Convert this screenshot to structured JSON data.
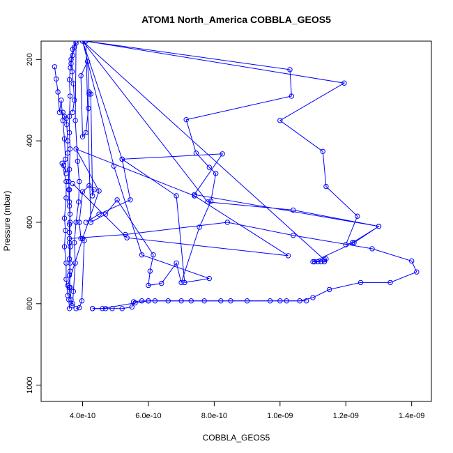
{
  "chart_data": {
    "type": "scatter",
    "title": "ATOM1 North_America COBBLA_GEOS5",
    "xlabel": "COBBLA_GEOS5",
    "ylabel": "Pressure (mbar)",
    "xlim": [
      2.74e-10,
      1.46e-09
    ],
    "ylim": [
      1040,
      155
    ],
    "y_reversed": true,
    "x_ticks": [
      {
        "value": 4e-10,
        "label": "4.0e-10"
      },
      {
        "value": 6e-10,
        "label": "6.0e-10"
      },
      {
        "value": 8e-10,
        "label": "8.0e-10"
      },
      {
        "value": 1e-09,
        "label": "1.0e-09"
      },
      {
        "value": 1.2e-09,
        "label": "1.2e-09"
      },
      {
        "value": 1.4e-09,
        "label": "1.4e-09"
      }
    ],
    "y_ticks": [
      {
        "value": 200,
        "label": "200"
      },
      {
        "value": 400,
        "label": "400"
      },
      {
        "value": 600,
        "label": "600"
      },
      {
        "value": 800,
        "label": "800"
      },
      {
        "value": 1000,
        "label": "1000"
      }
    ],
    "grid": false,
    "legend": "none",
    "series": [
      {
        "color": "#0000ff",
        "marker": "open-circle",
        "style": "line+points",
        "points": [
          [
            3.6e-10,
            812
          ],
          [
            3.58e-10,
            790
          ],
          [
            3.6e-10,
            760
          ],
          [
            3.62e-10,
            720
          ],
          [
            3.6e-10,
            690
          ],
          [
            3.6e-10,
            650
          ],
          [
            3.62e-10,
            600
          ],
          [
            3.6e-10,
            560
          ],
          [
            3.58e-10,
            520
          ],
          [
            3.6e-10,
            470
          ],
          [
            3.62e-10,
            420
          ],
          [
            3.6e-10,
            380
          ],
          [
            3.6e-10,
            340
          ],
          [
            3.62e-10,
            290
          ],
          [
            3.6e-10,
            250
          ],
          [
            3.63e-10,
            220
          ],
          [
            3.65e-10,
            200
          ],
          [
            3.7e-10,
            175
          ],
          [
            3.8e-10,
            155
          ],
          [
            4.1e-10,
            155
          ],
          [
            1.03e-09,
            225
          ],
          [
            1.035e-09,
            290
          ],
          [
            7.15e-10,
            348
          ],
          [
            7.45e-10,
            430
          ],
          [
            7.85e-10,
            465
          ],
          [
            8.05e-10,
            480
          ],
          [
            7.9e-10,
            548
          ],
          [
            7.55e-10,
            612
          ],
          [
            7e-10,
            748
          ],
          [
            6.85e-10,
            700
          ],
          [
            6.4e-10,
            750
          ],
          [
            6e-10,
            755
          ],
          [
            6.05e-10,
            720
          ],
          [
            6.15e-10,
            680
          ],
          [
            5.05e-10,
            545
          ],
          [
            4.7e-10,
            580
          ],
          [
            4.25e-10,
            600
          ],
          [
            4.1e-10,
            155
          ],
          [
            1.195e-09,
            258
          ],
          [
            1e-09,
            350
          ],
          [
            1.13e-09,
            426
          ],
          [
            1.14e-09,
            512
          ],
          [
            1.235e-09,
            585
          ],
          [
            1.2e-09,
            655
          ],
          [
            1.22e-09,
            650
          ],
          [
            1.3e-09,
            610
          ],
          [
            1.04e-09,
            570
          ],
          [
            7.8e-10,
            550
          ],
          [
            4e-10,
            155
          ],
          [
            5.2e-10,
            445
          ],
          [
            8.25e-10,
            432
          ],
          [
            7.4e-10,
            532
          ],
          [
            1.3e-09,
            610
          ],
          [
            1.225e-09,
            650
          ],
          [
            1.1e-09,
            697
          ],
          [
            1.135e-09,
            692
          ],
          [
            4e-10,
            155
          ],
          [
            4.95e-10,
            462
          ],
          [
            5.8e-10,
            680
          ],
          [
            7.85e-10,
            738
          ],
          [
            7.1e-10,
            748
          ],
          [
            6.85e-10,
            535
          ],
          [
            5.2e-10,
            445
          ],
          [
            5.45e-10,
            545
          ],
          [
            4.5e-10,
            580
          ],
          [
            4.1e-10,
            600
          ]
        ]
      },
      {
        "color": "#0000ff",
        "marker": "open-circle",
        "style": "line+points",
        "points": [
          [
            3.6e-10,
            640
          ],
          [
            5.3e-10,
            630
          ],
          [
            8.4e-10,
            600
          ],
          [
            1.04e-09,
            632
          ],
          [
            1.28e-09,
            665
          ],
          [
            1.4e-09,
            695
          ],
          [
            1.415e-09,
            722
          ],
          [
            1.335e-09,
            748
          ],
          [
            1.245e-09,
            748
          ],
          [
            1.15e-09,
            765
          ],
          [
            1.1e-09,
            785
          ],
          [
            1.06e-09,
            793
          ],
          [
            9.7e-10,
            793
          ],
          [
            8.5e-10,
            793
          ],
          [
            7.3e-10,
            793
          ],
          [
            6e-10,
            793
          ],
          [
            5.6e-10,
            798
          ],
          [
            4.6e-10,
            812
          ],
          [
            4.3e-10,
            812
          ]
        ]
      },
      {
        "color": "#0000ff",
        "marker": "open-circle",
        "style": "line+points",
        "points": [
          [
            3.7e-10,
            505
          ],
          [
            5.35e-10,
            638
          ],
          [
            1.025e-09,
            682
          ],
          [
            7.4e-10,
            535
          ],
          [
            3.8e-10,
            420
          ],
          [
            4.5e-10,
            523
          ],
          [
            4e-10,
            640
          ],
          [
            3.55e-10,
            755
          ]
        ]
      },
      {
        "color": "#0000ff",
        "marker": "open-circle",
        "style": "line+points",
        "points": [
          [
            3.15e-10,
            218
          ],
          [
            3.2e-10,
            248
          ],
          [
            3.25e-10,
            280
          ],
          [
            3.3e-10,
            330
          ],
          [
            3.35e-10,
            300
          ],
          [
            3.4e-10,
            350
          ],
          [
            3.45e-10,
            395
          ],
          [
            3.48e-10,
            445
          ],
          [
            3.5e-10,
            480
          ],
          [
            3.42e-10,
            460
          ],
          [
            3.38e-10,
            455
          ],
          [
            3.5e-10,
            500
          ],
          [
            3.5e-10,
            540
          ],
          [
            3.45e-10,
            590
          ],
          [
            3.48e-10,
            620
          ],
          [
            3.45e-10,
            660
          ],
          [
            3.5e-10,
            700
          ],
          [
            3.5e-10,
            740
          ],
          [
            3.55e-10,
            780
          ]
        ]
      },
      {
        "color": "#0000ff",
        "marker": "open-circle",
        "style": "line+points",
        "points": [
          [
            4.2e-10,
            285
          ],
          [
            4.18e-10,
            320
          ],
          [
            4.1e-10,
            380
          ],
          [
            4e-10,
            390
          ],
          [
            3.95e-10,
            240
          ],
          [
            4.15e-10,
            205
          ],
          [
            4.2e-10,
            280
          ],
          [
            4.25e-10,
            285
          ],
          [
            4.3e-10,
            535
          ],
          [
            4.35e-10,
            520
          ],
          [
            4.2e-10,
            510
          ],
          [
            4e-10,
            525
          ],
          [
            3.9e-10,
            600
          ],
          [
            3.95e-10,
            640
          ],
          [
            4.05e-10,
            645
          ],
          [
            3.98e-10,
            793
          ],
          [
            3.9e-10,
            810
          ],
          [
            3.8e-10,
            812
          ]
        ]
      },
      {
        "color": "#0000ff",
        "marker": "open-circle",
        "style": "line+points",
        "points": [
          [
            3.7e-10,
            330
          ],
          [
            3.75e-10,
            300
          ],
          [
            3.72e-10,
            260
          ],
          [
            3.68e-10,
            230
          ],
          [
            3.65e-10,
            210
          ],
          [
            3.7e-10,
            190
          ],
          [
            3.75e-10,
            170
          ],
          [
            3.8e-10,
            160
          ],
          [
            3.78e-10,
            350
          ],
          [
            3.85e-10,
            450
          ],
          [
            3.9e-10,
            500
          ],
          [
            3.88e-10,
            550
          ],
          [
            3.8e-10,
            600
          ],
          [
            3.75e-10,
            650
          ],
          [
            3.78e-10,
            700
          ],
          [
            3.72e-10,
            770
          ],
          [
            3.7e-10,
            800
          ]
        ]
      },
      {
        "color": "#0000ff",
        "marker": "open-circle",
        "style": "line+points",
        "points": [
          [
            3.4e-10,
            330
          ],
          [
            3.45e-10,
            340
          ],
          [
            3.5e-10,
            345
          ],
          [
            3.52e-10,
            360
          ],
          [
            3.55e-10,
            400
          ],
          [
            3.55e-10,
            430
          ],
          [
            3.58e-10,
            500
          ],
          [
            3.6e-10,
            520
          ],
          [
            3.6e-10,
            550
          ],
          [
            3.62e-10,
            580
          ],
          [
            3.6e-10,
            605
          ],
          [
            3.6e-10,
            625
          ],
          [
            3.63e-10,
            660
          ],
          [
            3.62e-10,
            700
          ],
          [
            3.6e-10,
            730
          ],
          [
            3.62e-10,
            760
          ],
          [
            3.65e-10,
            790
          ],
          [
            3.68e-10,
            805
          ]
        ]
      },
      {
        "color": "#0000ff",
        "marker": "open-circle",
        "style": "line+points",
        "points": [
          [
            4.3e-10,
            812
          ],
          [
            4.7e-10,
            812
          ],
          [
            4.9e-10,
            812
          ],
          [
            5.2e-10,
            812
          ],
          [
            5.5e-10,
            808
          ],
          [
            5.55e-10,
            795
          ],
          [
            5.8e-10,
            793
          ],
          [
            6e-10,
            793
          ],
          [
            6.2e-10,
            793
          ],
          [
            6.6e-10,
            793
          ],
          [
            7e-10,
            793
          ],
          [
            7.7e-10,
            793
          ],
          [
            8.2e-10,
            793
          ],
          [
            9e-10,
            793
          ],
          [
            1e-09,
            793
          ],
          [
            1.02e-09,
            793
          ],
          [
            1.08e-09,
            793
          ]
        ]
      },
      {
        "color": "#0000ff",
        "marker": "open-circle",
        "style": "line+points",
        "points": [
          [
            1.105e-09,
            697
          ],
          [
            1.115e-09,
            697
          ],
          [
            1.125e-09,
            697
          ],
          [
            1.135e-09,
            697
          ],
          [
            1.14e-09,
            690
          ]
        ]
      }
    ]
  }
}
